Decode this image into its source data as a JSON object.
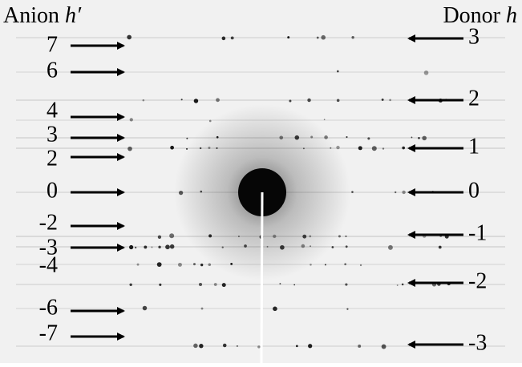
{
  "header": {
    "left": {
      "text": "Anion",
      "symbol": "h′"
    },
    "right": {
      "text": "Donor",
      "symbol": "h"
    }
  },
  "left_labels": [
    "7",
    "6",
    "4",
    "3",
    "2",
    "0",
    "-2",
    "-3",
    "-4",
    "-6",
    "-7"
  ],
  "right_labels": [
    "3",
    "2",
    "1",
    "0",
    "-1",
    "-2",
    "-3"
  ]
}
